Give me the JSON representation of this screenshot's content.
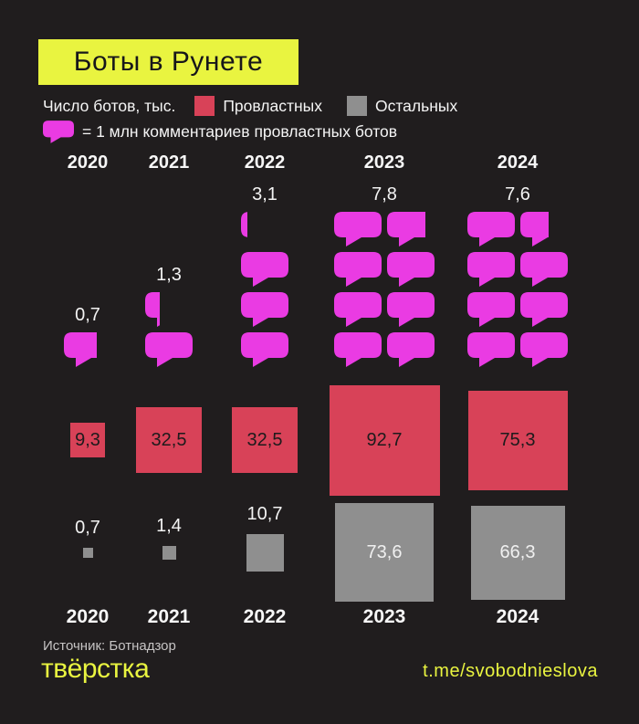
{
  "header": {
    "title": "Боты в Рунете"
  },
  "legend": {
    "units_label": "Число ботов, тыс.",
    "pro_gov_label": "Провластных",
    "others_label": "Остальных",
    "bubble_note": "= 1 млн комментариев провластных ботов"
  },
  "colors": {
    "background": "#201D1E",
    "accent_yellow": "#E9F440",
    "magenta": "#EA3BE3",
    "red": "#D84258",
    "gray": "#8F8F8F"
  },
  "chart_data": {
    "type": "pictogram",
    "title": "Боты в Рунете",
    "categories": [
      "2020",
      "2021",
      "2022",
      "2023",
      "2024"
    ],
    "series": [
      {
        "name": "Комментарии провластных ботов",
        "unit": "млн (1 bubble = 1 млн)",
        "values": [
          0.7,
          1.3,
          3.1,
          7.8,
          7.6
        ],
        "labels": [
          "0,7",
          "1,3",
          "3,1",
          "7,8",
          "7,6"
        ]
      },
      {
        "name": "Провластных ботов",
        "unit": "тыс.",
        "values": [
          9.3,
          32.5,
          32.5,
          92.7,
          75.3
        ],
        "labels": [
          "9,3",
          "32,5",
          "32,5",
          "92,7",
          "75,3"
        ]
      },
      {
        "name": "Остальных ботов",
        "unit": "тыс.",
        "values": [
          0.7,
          1.4,
          10.7,
          73.6,
          66.3
        ],
        "labels": [
          "0,7",
          "1,4",
          "10,7",
          "73,6",
          "66,3"
        ]
      }
    ],
    "layout_hints": {
      "scaling": "square side proportional to sqrt(value); one speech bubble = 1 million comments, partial bubble clipped to fraction",
      "grid": "off",
      "legend_position": "top"
    }
  },
  "footer": {
    "source": "Источник: Ботнадзор",
    "logo": "твёрстка",
    "link": "t.me/svobodnieslova"
  }
}
